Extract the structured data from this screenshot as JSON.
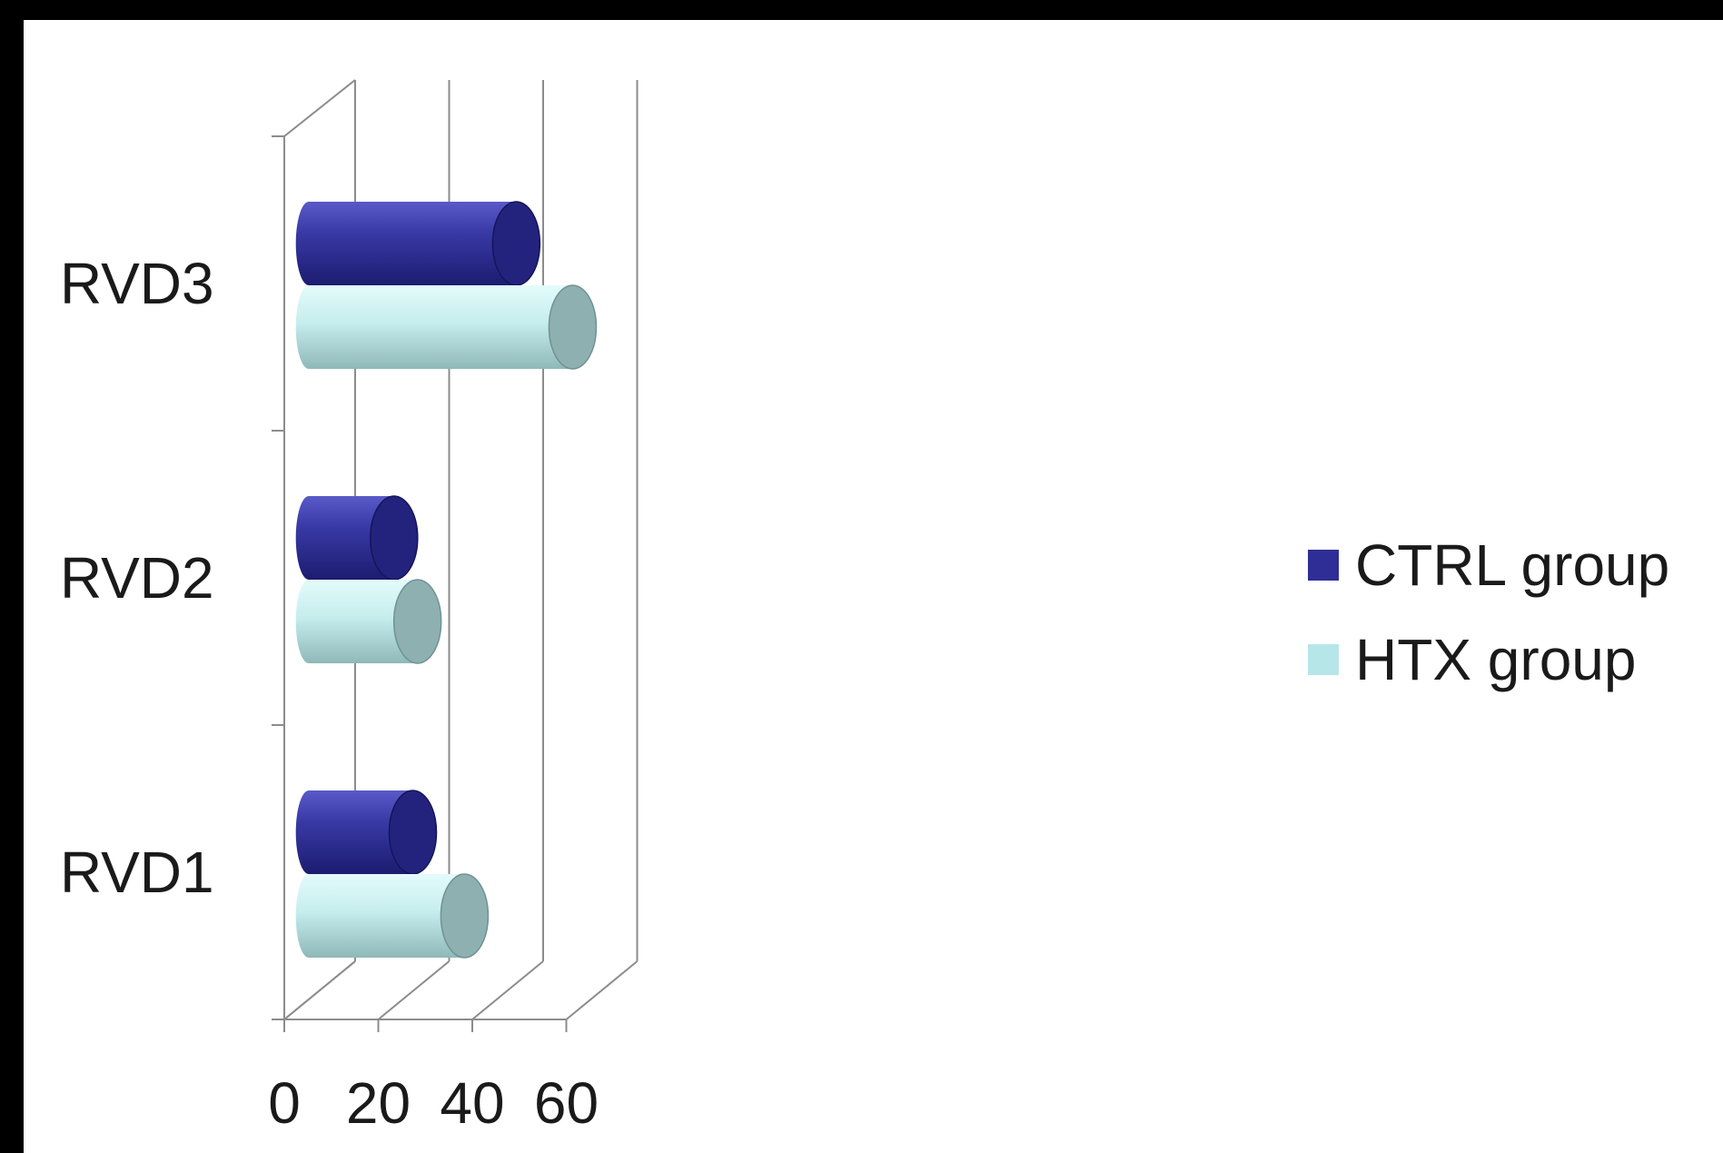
{
  "chart_data": {
    "type": "bar",
    "orientation": "horizontal",
    "style": "3d-cylinder",
    "title": "",
    "xlabel": "",
    "ylabel": "",
    "categories": [
      "RVD1",
      "RVD2",
      "RVD3"
    ],
    "series": [
      {
        "name": "CTRL group",
        "values": [
          20,
          16,
          42
        ],
        "color": "#2e2e96"
      },
      {
        "name": "HTX group",
        "values": [
          31,
          21,
          54
        ],
        "color": "#b7e6e8"
      }
    ],
    "xlim": [
      0,
      60
    ],
    "x_ticks": [
      0,
      20,
      40,
      60
    ],
    "grid": true,
    "legend": "right"
  }
}
